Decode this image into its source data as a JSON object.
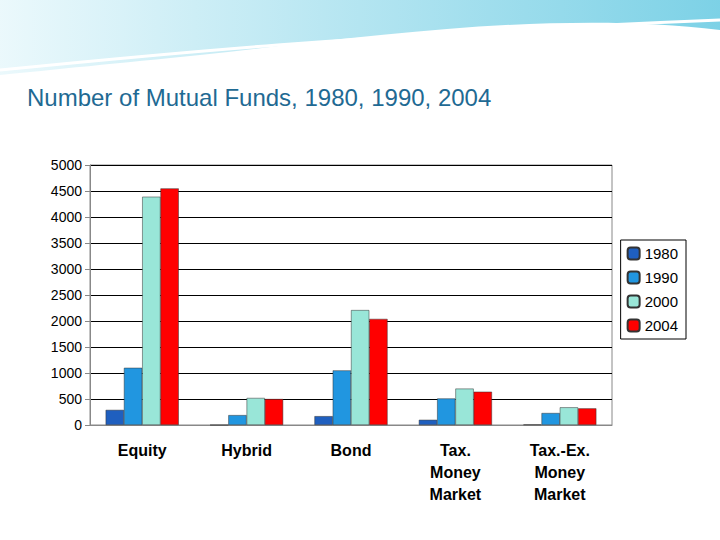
{
  "chart_data": {
    "type": "bar",
    "title": "Number of Mutual Funds, 1980, 1990, 2004",
    "categories": [
      "Equity",
      "Hybrid",
      "Bond",
      "Tax.\nMoney\nMarket",
      "Tax.-Ex.\nMoney\nMarket"
    ],
    "series": [
      {
        "name": "1980",
        "color": "#1f5fbf",
        "values": [
          290,
          0,
          170,
          100,
          10
        ]
      },
      {
        "name": "1990",
        "color": "#2196e0",
        "values": [
          1100,
          190,
          1050,
          510,
          230
        ]
      },
      {
        "name": "2000",
        "color": "#99e6d8",
        "values": [
          4390,
          520,
          2210,
          700,
          340
        ]
      },
      {
        "name": "2004",
        "color": "#ff0000",
        "values": [
          4550,
          500,
          2040,
          640,
          320
        ]
      }
    ],
    "ylim": [
      0,
      5000
    ],
    "yticks": [
      0,
      500,
      1000,
      1500,
      2000,
      2500,
      3000,
      3500,
      4000,
      4500,
      5000
    ],
    "grid": true,
    "legend": "right"
  }
}
